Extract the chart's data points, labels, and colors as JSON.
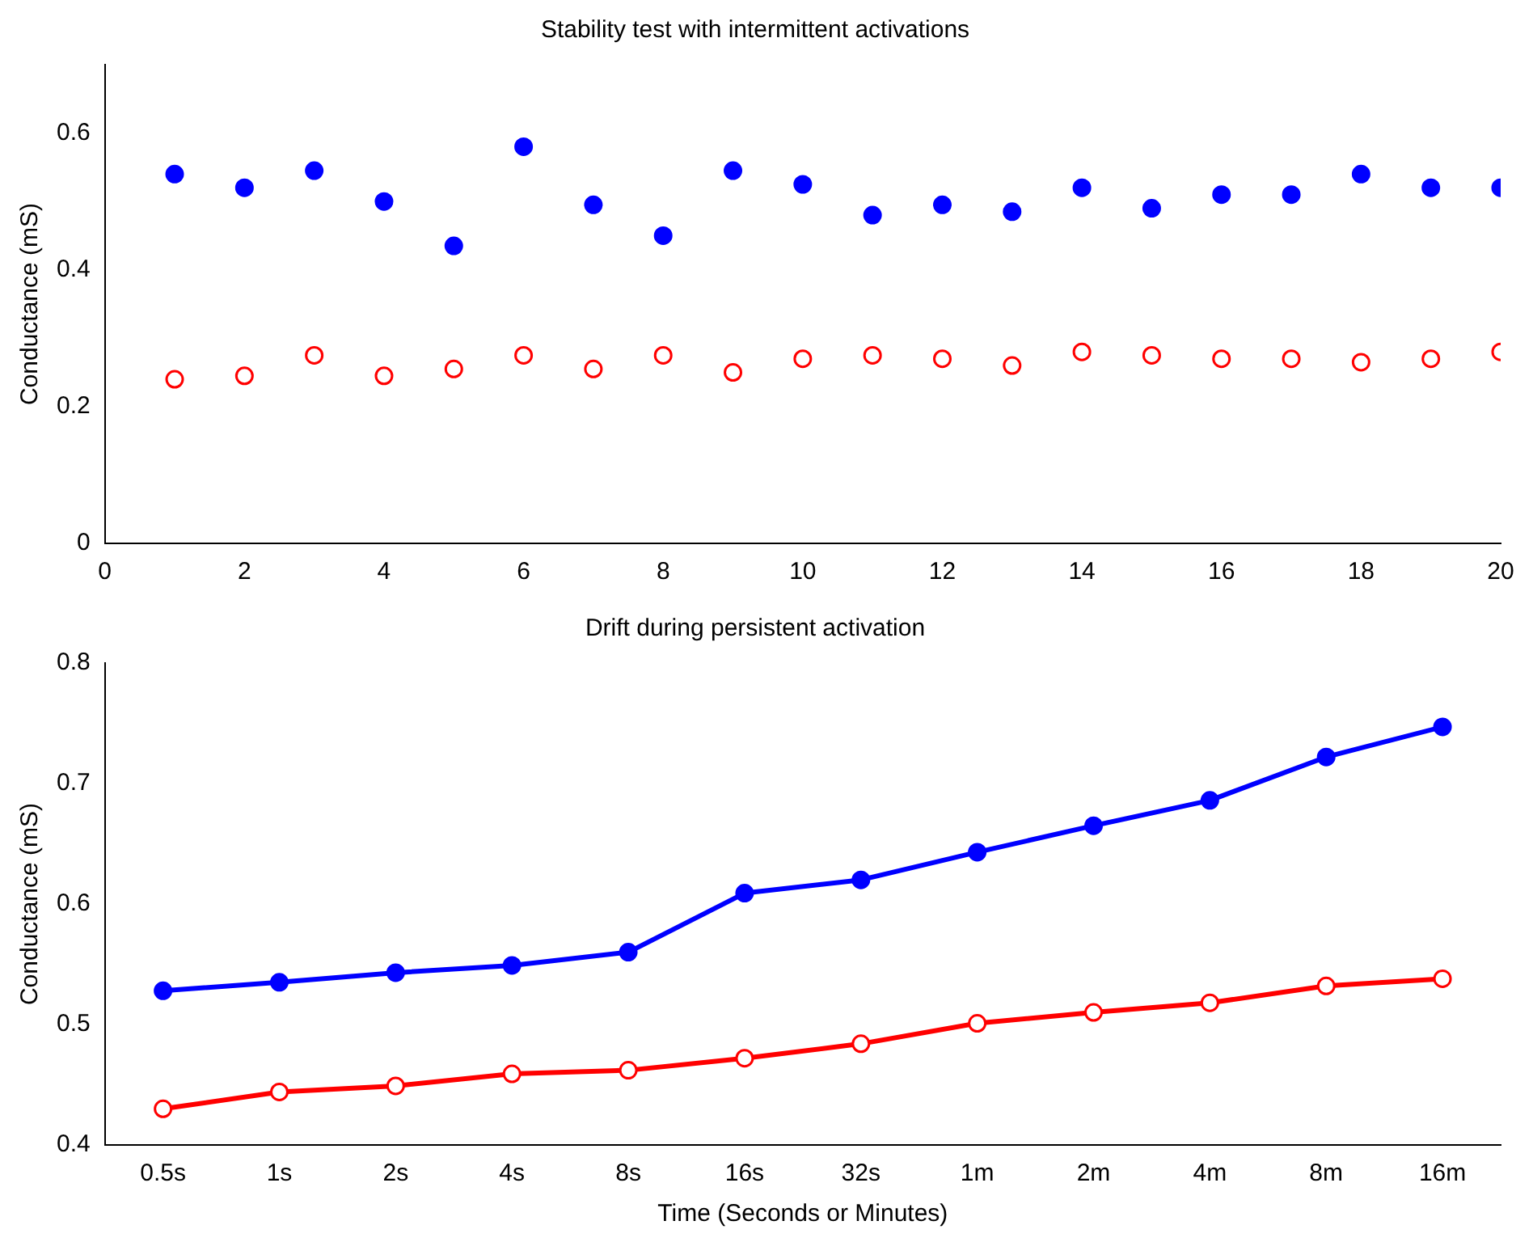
{
  "chart_data": [
    {
      "type": "scatter",
      "title": "Stability test with intermittent activations",
      "ylabel": "Conductance (mS)",
      "x": [
        1,
        2,
        3,
        4,
        5,
        6,
        7,
        8,
        9,
        10,
        11,
        12,
        13,
        14,
        15,
        16,
        17,
        18,
        19,
        20
      ],
      "series": [
        {
          "color": "#0000ff",
          "values": [
            0.54,
            0.52,
            0.545,
            0.5,
            0.435,
            0.58,
            0.495,
            0.45,
            0.545,
            0.525,
            0.48,
            0.495,
            0.485,
            0.52,
            0.49,
            0.51,
            0.51,
            0.54,
            0.52,
            0.52
          ]
        },
        {
          "color": "#ff0000",
          "values": [
            0.24,
            0.245,
            0.275,
            0.245,
            0.255,
            0.275,
            0.255,
            0.275,
            0.25,
            0.27,
            0.275,
            0.27,
            0.26,
            0.28,
            0.275,
            0.27,
            0.27,
            0.265,
            0.27,
            0.28
          ]
        }
      ],
      "xlim": [
        0,
        20
      ],
      "xticks": [
        0,
        2,
        4,
        6,
        8,
        10,
        12,
        14,
        16,
        18,
        20
      ],
      "ylim": [
        0,
        0.7
      ],
      "yticks": [
        0,
        0.2,
        0.4,
        0.6
      ],
      "marker": "circle",
      "grid": false,
      "legend": false
    },
    {
      "type": "line",
      "title": "Drift during persistent activation",
      "xlabel": "Time (Seconds or Minutes)",
      "ylabel": "Conductance (mS)",
      "categories": [
        "0.5s",
        "1s",
        "2s",
        "4s",
        "8s",
        "16s",
        "32s",
        "1m",
        "2m",
        "4m",
        "8m",
        "16m"
      ],
      "series": [
        {
          "color": "#0000ff",
          "values": [
            0.528,
            0.535,
            0.543,
            0.549,
            0.56,
            0.609,
            0.62,
            0.643,
            0.665,
            0.686,
            0.722,
            0.747
          ]
        },
        {
          "color": "#ff0000",
          "values": [
            0.43,
            0.444,
            0.449,
            0.459,
            0.462,
            0.472,
            0.484,
            0.501,
            0.51,
            0.518,
            0.532,
            0.538
          ]
        }
      ],
      "ylim": [
        0.4,
        0.8
      ],
      "yticks": [
        0.4,
        0.5,
        0.6,
        0.7,
        0.8
      ],
      "marker": "circle",
      "line_style": "solid",
      "grid": false,
      "legend": false
    }
  ]
}
